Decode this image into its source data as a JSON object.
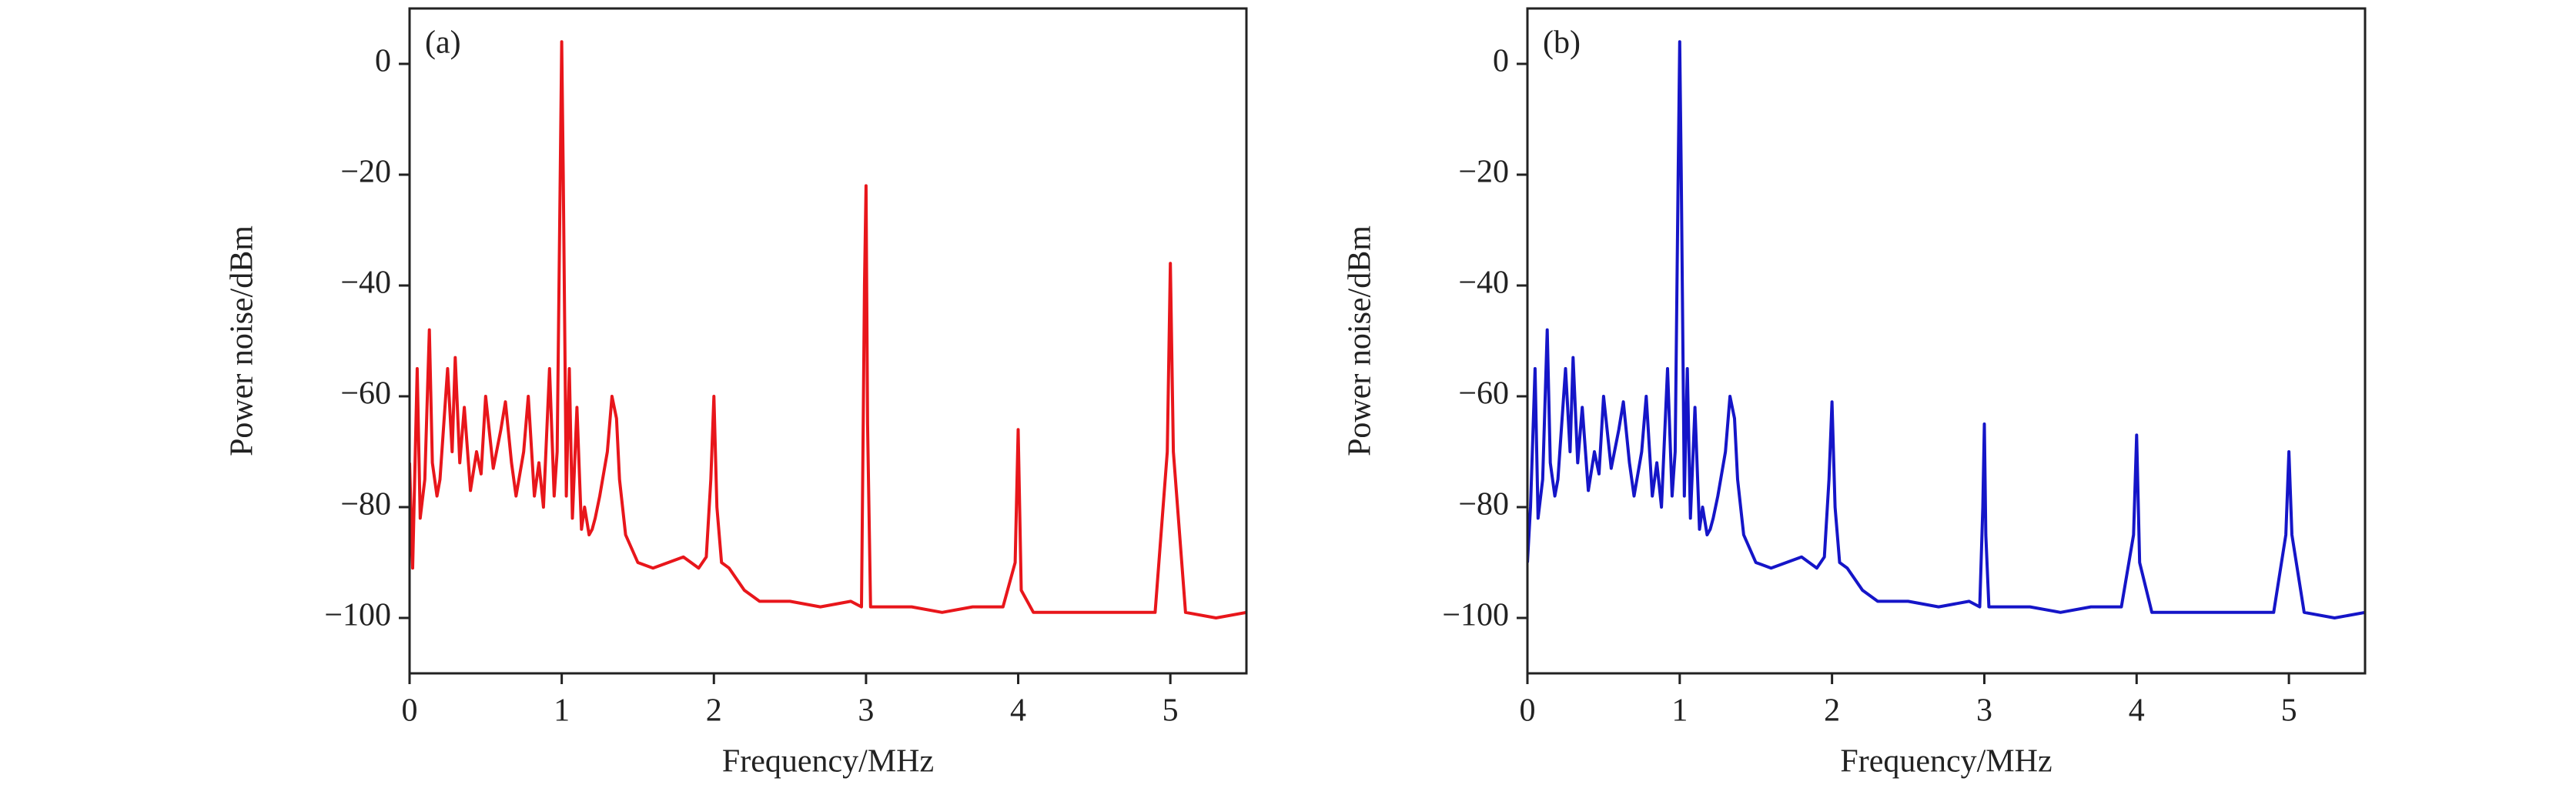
{
  "chart_data": [
    {
      "type": "line",
      "annotation": "(a)",
      "x_label": "Frequency/MHz",
      "y_label": "Power noise/dBm",
      "xlim": [
        0,
        5.5
      ],
      "ylim": [
        -110,
        10
      ],
      "xticks": [
        0,
        1,
        2,
        3,
        4,
        5
      ],
      "yticks": [
        {
          "value": -100,
          "label": "−100"
        },
        {
          "value": -80,
          "label": "−80"
        },
        {
          "value": -60,
          "label": "−60"
        },
        {
          "value": -40,
          "label": "−40"
        },
        {
          "value": -20,
          "label": "−20"
        },
        0
      ],
      "x": [
        0,
        0.02,
        0.05,
        0.07,
        0.1,
        0.13,
        0.15,
        0.18,
        0.2,
        0.25,
        0.28,
        0.3,
        0.33,
        0.36,
        0.4,
        0.44,
        0.47,
        0.5,
        0.55,
        0.6,
        0.63,
        0.67,
        0.7,
        0.75,
        0.78,
        0.82,
        0.85,
        0.88,
        0.92,
        0.95,
        0.97,
        0.99,
        1.0,
        1.01,
        1.03,
        1.05,
        1.07,
        1.1,
        1.13,
        1.15,
        1.18,
        1.2,
        1.22,
        1.25,
        1.3,
        1.33,
        1.36,
        1.38,
        1.42,
        1.5,
        1.6,
        1.7,
        1.8,
        1.85,
        1.9,
        1.95,
        1.98,
        2.0,
        2.02,
        2.05,
        2.1,
        2.15,
        2.2,
        2.3,
        2.5,
        2.7,
        2.9,
        2.97,
        2.99,
        3.0,
        3.01,
        3.03,
        3.1,
        3.3,
        3.5,
        3.7,
        3.9,
        3.98,
        4.0,
        4.02,
        4.1,
        4.3,
        4.5,
        4.7,
        4.9,
        4.98,
        5.0,
        5.02,
        5.1,
        5.3,
        5.5
      ],
      "series": [
        {
          "color": "#e8161b",
          "values": [
            -72,
            -91,
            -55,
            -82,
            -75,
            -48,
            -72,
            -78,
            -75,
            -55,
            -70,
            -53,
            -72,
            -62,
            -77,
            -70,
            -74,
            -60,
            -73,
            -66,
            -61,
            -72,
            -78,
            -70,
            -60,
            -78,
            -72,
            -80,
            -55,
            -78,
            -70,
            -20,
            4,
            -20,
            -78,
            -55,
            -82,
            -62,
            -84,
            -80,
            -85,
            -84,
            -82,
            -78,
            -70,
            -60,
            -64,
            -75,
            -85,
            -90,
            -91,
            -90,
            -89,
            -90,
            -91,
            -89,
            -75,
            -60,
            -80,
            -90,
            -91,
            -93,
            -95,
            -97,
            -97,
            -98,
            -97,
            -98,
            -40,
            -22,
            -65,
            -98,
            -98,
            -98,
            -99,
            -98,
            -98,
            -90,
            -66,
            -95,
            -99,
            -99,
            -99,
            -99,
            -99,
            -70,
            -36,
            -70,
            -99,
            -100,
            -99
          ]
        }
      ]
    },
    {
      "type": "line",
      "annotation": "(b)",
      "x_label": "Frequency/MHz",
      "y_label": "Power noise/dBm",
      "xlim": [
        0,
        5.5
      ],
      "ylim": [
        -110,
        10
      ],
      "xticks": [
        0,
        1,
        2,
        3,
        4,
        5
      ],
      "yticks": [
        {
          "value": -100,
          "label": "−100"
        },
        {
          "value": -80,
          "label": "−80"
        },
        {
          "value": -60,
          "label": "−60"
        },
        {
          "value": -40,
          "label": "−40"
        },
        {
          "value": -20,
          "label": "−20"
        },
        0
      ],
      "x": [
        0,
        0.02,
        0.05,
        0.07,
        0.1,
        0.13,
        0.15,
        0.18,
        0.2,
        0.25,
        0.28,
        0.3,
        0.33,
        0.36,
        0.4,
        0.44,
        0.47,
        0.5,
        0.55,
        0.6,
        0.63,
        0.67,
        0.7,
        0.75,
        0.78,
        0.82,
        0.85,
        0.88,
        0.92,
        0.95,
        0.97,
        0.99,
        1.0,
        1.01,
        1.03,
        1.05,
        1.07,
        1.1,
        1.13,
        1.15,
        1.18,
        1.2,
        1.22,
        1.25,
        1.3,
        1.33,
        1.36,
        1.38,
        1.42,
        1.5,
        1.6,
        1.7,
        1.8,
        1.85,
        1.9,
        1.95,
        1.98,
        2.0,
        2.02,
        2.05,
        2.1,
        2.15,
        2.2,
        2.3,
        2.5,
        2.7,
        2.9,
        2.97,
        2.99,
        3.0,
        3.01,
        3.03,
        3.1,
        3.3,
        3.5,
        3.7,
        3.9,
        3.98,
        4.0,
        4.02,
        4.1,
        4.3,
        4.5,
        4.7,
        4.9,
        4.98,
        5.0,
        5.02,
        5.1,
        5.3,
        5.5
      ],
      "series": [
        {
          "color": "#1515c8",
          "values": [
            -90,
            -80,
            -55,
            -82,
            -75,
            -48,
            -72,
            -78,
            -75,
            -55,
            -70,
            -53,
            -72,
            -62,
            -77,
            -70,
            -74,
            -60,
            -73,
            -66,
            -61,
            -72,
            -78,
            -70,
            -60,
            -78,
            -72,
            -80,
            -55,
            -78,
            -70,
            -20,
            4,
            -20,
            -78,
            -55,
            -82,
            -62,
            -84,
            -80,
            -85,
            -84,
            -82,
            -78,
            -70,
            -60,
            -64,
            -75,
            -85,
            -90,
            -91,
            -90,
            -89,
            -90,
            -91,
            -89,
            -75,
            -61,
            -80,
            -90,
            -91,
            -93,
            -95,
            -97,
            -97,
            -98,
            -97,
            -98,
            -80,
            -65,
            -85,
            -98,
            -98,
            -98,
            -99,
            -98,
            -98,
            -85,
            -67,
            -90,
            -99,
            -99,
            -99,
            -99,
            -99,
            -85,
            -70,
            -85,
            -99,
            -100,
            -99
          ]
        }
      ]
    }
  ]
}
